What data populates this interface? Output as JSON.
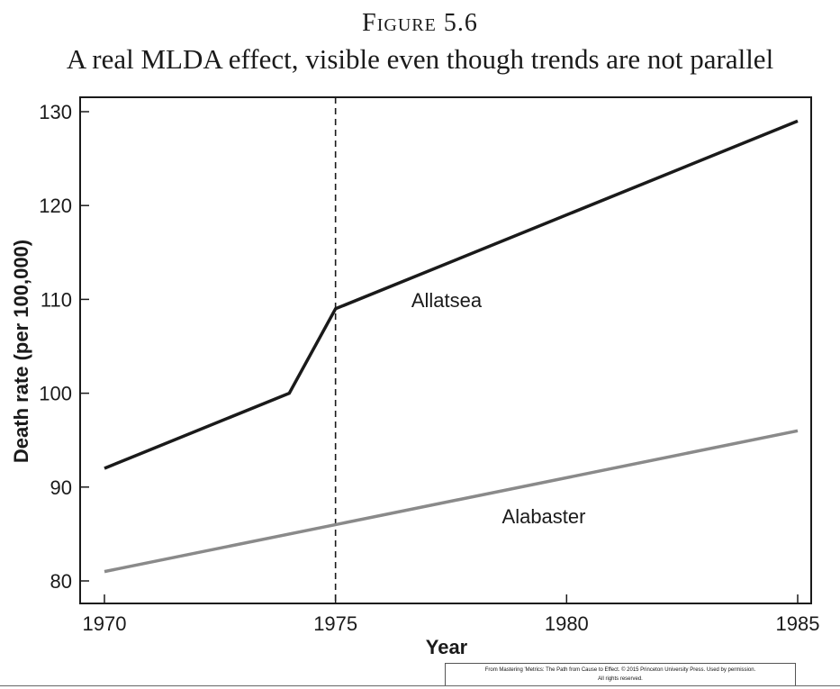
{
  "figure_label": "Figure 5.6",
  "figure_title": "A real MLDA effect, visible even though trends are not parallel",
  "credit_line1": "From Mastering 'Metrics: The Path from Cause to Effect. © 2015 Princeton University Press. Used by permission.",
  "credit_line2": "All rights reserved.",
  "colors": {
    "allatsea": "#1a1a1a",
    "alabaster": "#8a8a8a",
    "axis": "#1a1a1a"
  },
  "chart_data": {
    "type": "line",
    "title": "A real MLDA effect, visible even though trends are not parallel",
    "xlabel": "Year",
    "ylabel": "Death rate (per 100,000)",
    "xlim": [
      1970,
      1985
    ],
    "ylim": [
      78,
      131.5
    ],
    "x_ticks": [
      1970,
      1975,
      1980,
      1985
    ],
    "y_ticks": [
      80,
      90,
      100,
      110,
      120,
      130
    ],
    "grid": false,
    "legend": "inline labels",
    "vertical_reference_line": {
      "x": 1975,
      "style": "dashed"
    },
    "series": [
      {
        "name": "Allatsea",
        "x": [
          1970,
          1974,
          1975,
          1985
        ],
        "y": [
          92,
          100,
          109,
          129
        ]
      },
      {
        "name": "Alabaster",
        "x": [
          1970,
          1985
        ],
        "y": [
          81,
          96
        ]
      }
    ]
  }
}
